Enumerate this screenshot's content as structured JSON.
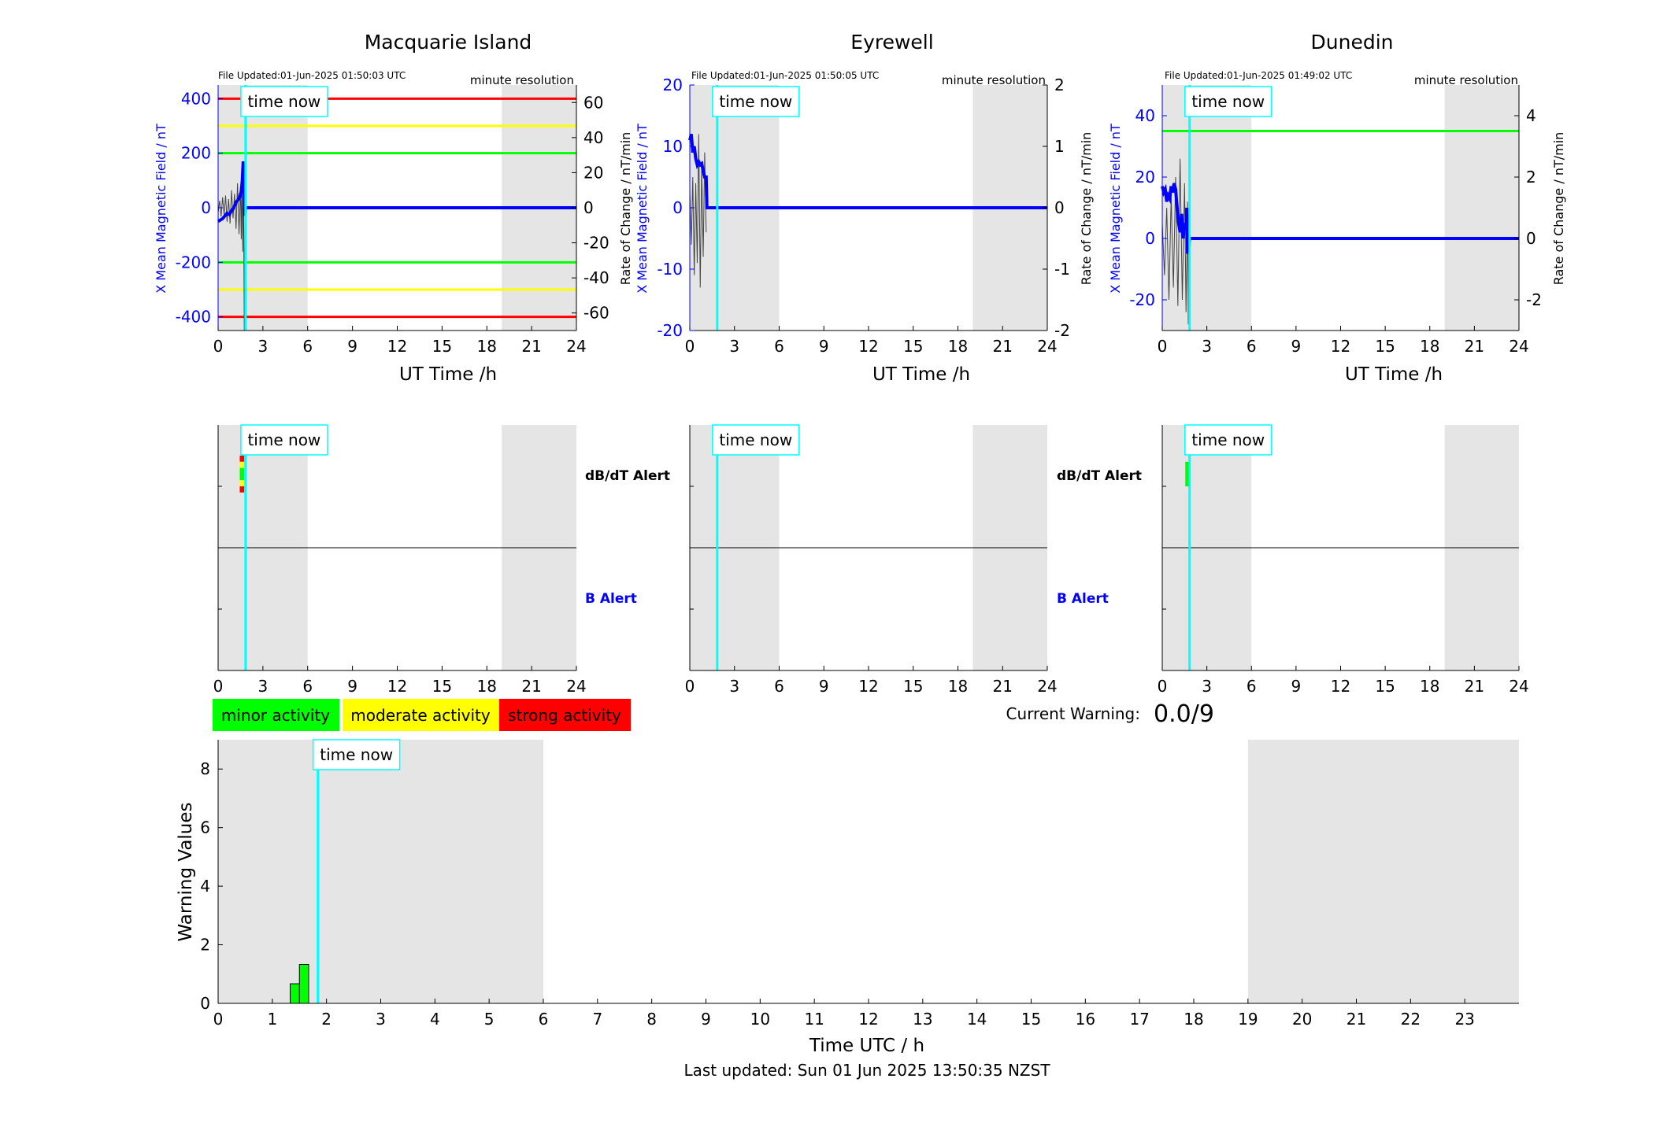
{
  "chart_data": [
    {
      "type": "line",
      "panel": "station",
      "title": "Macquarie Island",
      "file_updated": "File Updated:01-Jun-2025 01:50:03 UTC",
      "resolution": "minute resolution",
      "xlabel": "UT Time /h",
      "ylabel_left": "X Mean Magnetic Field / nT",
      "ylabel_right": "Rate of Change / nT/min",
      "xlim": [
        0,
        24
      ],
      "xticks": [
        0,
        3,
        6,
        9,
        12,
        15,
        18,
        21,
        24
      ],
      "ylim_left": [
        -450,
        450
      ],
      "yticks_left": [
        -400,
        -200,
        0,
        200,
        400
      ],
      "ylim_right": [
        -70,
        70
      ],
      "yticks_right": [
        -60,
        -40,
        -20,
        0,
        20,
        40,
        60
      ],
      "shaded_ranges": [
        [
          0,
          6
        ],
        [
          19,
          24
        ]
      ],
      "time_now": 1.84,
      "time_now_label": "time now",
      "threshold_lines": [
        {
          "y": 400,
          "color": "#ff0000"
        },
        {
          "y": -400,
          "color": "#ff0000"
        },
        {
          "y": 300,
          "color": "#ffff00"
        },
        {
          "y": -300,
          "color": "#ffff00"
        },
        {
          "y": 200,
          "color": "#00ff00"
        },
        {
          "y": -200,
          "color": "#00ff00"
        }
      ],
      "series": [
        {
          "axis": "left",
          "color": "#0000ff",
          "x": [
            0,
            0.15,
            0.3,
            0.45,
            0.6,
            0.75,
            0.9,
            1.05,
            1.2,
            1.35,
            1.45,
            1.55,
            1.62,
            1.68,
            1.72,
            1.76,
            1.8,
            1.84,
            2.0,
            24
          ],
          "y": [
            -50,
            -45,
            -40,
            -30,
            -20,
            -25,
            -10,
            0,
            20,
            30,
            40,
            60,
            100,
            170,
            130,
            20,
            -30,
            0,
            0,
            0
          ]
        },
        {
          "axis": "right",
          "color": "#444444",
          "x": [
            0,
            0.1,
            0.2,
            0.3,
            0.4,
            0.5,
            0.6,
            0.7,
            0.8,
            0.9,
            1.0,
            1.1,
            1.2,
            1.3,
            1.4,
            1.5,
            1.55,
            1.6,
            1.65,
            1.7,
            1.75,
            1.8
          ],
          "y": [
            -3,
            4,
            -5,
            6,
            -4,
            7,
            -8,
            5,
            -9,
            10,
            -6,
            8,
            -12,
            14,
            -15,
            12,
            -18,
            20,
            -25,
            15,
            -70,
            10
          ]
        }
      ]
    },
    {
      "type": "line",
      "panel": "station",
      "title": "Eyrewell",
      "file_updated": "File Updated:01-Jun-2025 01:50:05 UTC",
      "resolution": "minute resolution",
      "xlabel": "UT Time /h",
      "ylabel_left": "X Mean Magnetic Field / nT",
      "ylabel_right": "Rate of Change / nT/min",
      "xlim": [
        0,
        24
      ],
      "xticks": [
        0,
        3,
        6,
        9,
        12,
        15,
        18,
        21,
        24
      ],
      "ylim_left": [
        -20,
        20
      ],
      "yticks_left": [
        -20,
        -10,
        0,
        10,
        20
      ],
      "ylim_right": [
        -2,
        2
      ],
      "yticks_right": [
        -2,
        -1,
        0,
        1,
        2
      ],
      "shaded_ranges": [
        [
          0,
          6
        ],
        [
          19,
          24
        ]
      ],
      "time_now": 1.84,
      "time_now_label": "time now",
      "threshold_lines": [],
      "series": [
        {
          "axis": "left",
          "color": "#0000ff",
          "x": [
            0,
            0.1,
            0.2,
            0.3,
            0.4,
            0.5,
            0.6,
            0.7,
            0.8,
            0.9,
            1.0,
            1.1,
            1.15,
            1.2,
            24
          ],
          "y": [
            11,
            12,
            9,
            10,
            8,
            7,
            7.5,
            7,
            7.2,
            6,
            5,
            5,
            0,
            0,
            0
          ]
        },
        {
          "axis": "right",
          "color": "#444444",
          "x": [
            0,
            0.1,
            0.2,
            0.3,
            0.4,
            0.5,
            0.6,
            0.7,
            0.8,
            0.9,
            1.0,
            1.1
          ],
          "y": [
            0.3,
            -0.6,
            0.5,
            -1.1,
            0.4,
            -0.9,
            1.2,
            -1.3,
            0.7,
            -0.8,
            0.9,
            -0.4
          ]
        }
      ]
    },
    {
      "type": "line",
      "panel": "station",
      "title": "Dunedin",
      "file_updated": "File Updated:01-Jun-2025 01:49:02 UTC",
      "resolution": "minute resolution",
      "xlabel": "UT Time /h",
      "ylabel_left": "X Mean Magnetic Field / nT",
      "ylabel_right": "Rate of Change / nT/min",
      "xlim": [
        0,
        24
      ],
      "xticks": [
        0,
        3,
        6,
        9,
        12,
        15,
        18,
        21,
        24
      ],
      "ylim_left": [
        -30,
        50
      ],
      "yticks_left": [
        -20,
        0,
        20,
        40
      ],
      "ylim_right": [
        -3,
        5
      ],
      "yticks_right": [
        -2,
        0,
        2,
        4
      ],
      "shaded_ranges": [
        [
          0,
          6
        ],
        [
          19,
          24
        ]
      ],
      "time_now": 1.84,
      "time_now_label": "time now",
      "threshold_lines": [
        {
          "y": 35,
          "color": "#00ff00"
        }
      ],
      "series": [
        {
          "axis": "left",
          "color": "#0000ff",
          "x": [
            0,
            0.1,
            0.2,
            0.3,
            0.4,
            0.5,
            0.6,
            0.7,
            0.8,
            0.9,
            1.0,
            1.1,
            1.2,
            1.3,
            1.4,
            1.5,
            1.6,
            1.65,
            1.7,
            1.75,
            1.8,
            1.84,
            2.0,
            24
          ],
          "y": [
            17,
            15,
            16,
            12,
            14,
            13,
            17,
            15,
            18,
            16,
            10,
            5,
            2,
            8,
            0,
            5,
            3,
            10,
            -5,
            8,
            -3,
            0,
            0,
            0
          ]
        },
        {
          "axis": "right",
          "color": "#444444",
          "x": [
            0,
            0.15,
            0.3,
            0.45,
            0.6,
            0.75,
            0.9,
            1.05,
            1.2,
            1.35,
            1.5,
            1.6,
            1.7,
            1.75,
            1.8
          ],
          "y": [
            0.5,
            -1.2,
            1.0,
            -2.0,
            1.4,
            -1.6,
            2.0,
            -2.2,
            2.6,
            -2.0,
            1.8,
            -2.4,
            1.2,
            -2.8,
            0.3
          ]
        }
      ]
    },
    {
      "type": "bar",
      "panel": "alert",
      "xlim": [
        0,
        24
      ],
      "xticks": [
        0,
        3,
        6,
        9,
        12,
        15,
        18,
        21,
        24
      ],
      "shaded_ranges": [
        [
          0,
          6
        ],
        [
          19,
          24
        ]
      ],
      "time_now": 1.84,
      "time_now_label": "time now",
      "row_labels": [
        "dB/dT Alert",
        "B Alert"
      ],
      "row_label_colors": [
        "#000000",
        "#0000ff"
      ],
      "dbdt_segments": [
        {
          "t0": 1.45,
          "t1": 1.75,
          "bands": [
            {
              "from": 0.5,
              "to": 0.6,
              "color": "#ff0000"
            },
            {
              "from": 0.6,
              "to": 0.7,
              "color": "#ffff00"
            },
            {
              "from": 0.7,
              "to": 0.9,
              "color": "#00ff00"
            },
            {
              "from": 0.9,
              "to": 1.0,
              "color": "#ffff00"
            },
            {
              "from": 1.0,
              "to": 1.1,
              "color": "#ff0000"
            }
          ]
        }
      ],
      "b_segments": []
    },
    {
      "type": "bar",
      "panel": "alert",
      "xlim": [
        0,
        24
      ],
      "xticks": [
        0,
        3,
        6,
        9,
        12,
        15,
        18,
        21,
        24
      ],
      "shaded_ranges": [
        [
          0,
          6
        ],
        [
          19,
          24
        ]
      ],
      "time_now": 1.84,
      "time_now_label": "time now",
      "row_labels": [
        "dB/dT Alert",
        "B Alert"
      ],
      "row_label_colors": [
        "#000000",
        "#0000ff"
      ],
      "dbdt_segments": [],
      "b_segments": []
    },
    {
      "type": "bar",
      "panel": "alert",
      "xlim": [
        0,
        24
      ],
      "xticks": [
        0,
        3,
        6,
        9,
        12,
        15,
        18,
        21,
        24
      ],
      "shaded_ranges": [
        [
          0,
          6
        ],
        [
          19,
          24
        ]
      ],
      "time_now": 1.84,
      "time_now_label": "time now",
      "row_labels": [],
      "row_label_colors": [],
      "dbdt_segments": [
        {
          "t0": 1.55,
          "t1": 1.85,
          "bands": [
            {
              "from": 0.6,
              "to": 1.0,
              "color": "#00ff00"
            }
          ]
        }
      ],
      "b_segments": []
    },
    {
      "type": "bar",
      "panel": "warning",
      "xlabel": "Time UTC / h",
      "ylabel": "Warning Values",
      "xlim": [
        0,
        24
      ],
      "xticks": [
        0,
        1,
        2,
        3,
        4,
        5,
        6,
        7,
        8,
        9,
        10,
        11,
        12,
        13,
        14,
        15,
        16,
        17,
        18,
        19,
        20,
        21,
        22,
        23
      ],
      "ylim": [
        0,
        9
      ],
      "yticks": [
        0,
        2,
        4,
        6,
        8
      ],
      "shaded_ranges": [
        [
          0,
          6
        ],
        [
          19,
          24
        ]
      ],
      "time_now": 1.84,
      "time_now_label": "time now",
      "bars": [
        {
          "x0": 1.33,
          "x1": 1.5,
          "value": 0.67,
          "color": "#00ff00"
        },
        {
          "x0": 1.5,
          "x1": 1.67,
          "value": 1.33,
          "color": "#00ff00"
        }
      ]
    }
  ],
  "legend": [
    {
      "label": "minor activity",
      "color": "#00ff00"
    },
    {
      "label": "moderate activity",
      "color": "#ffff00"
    },
    {
      "label": "strong activity",
      "color": "#ff0000"
    }
  ],
  "current_warning": {
    "label": "Current Warning:",
    "value": "0.0/9"
  },
  "footer": "Last updated: Sun 01 Jun 2025 13:50:35 NZST"
}
